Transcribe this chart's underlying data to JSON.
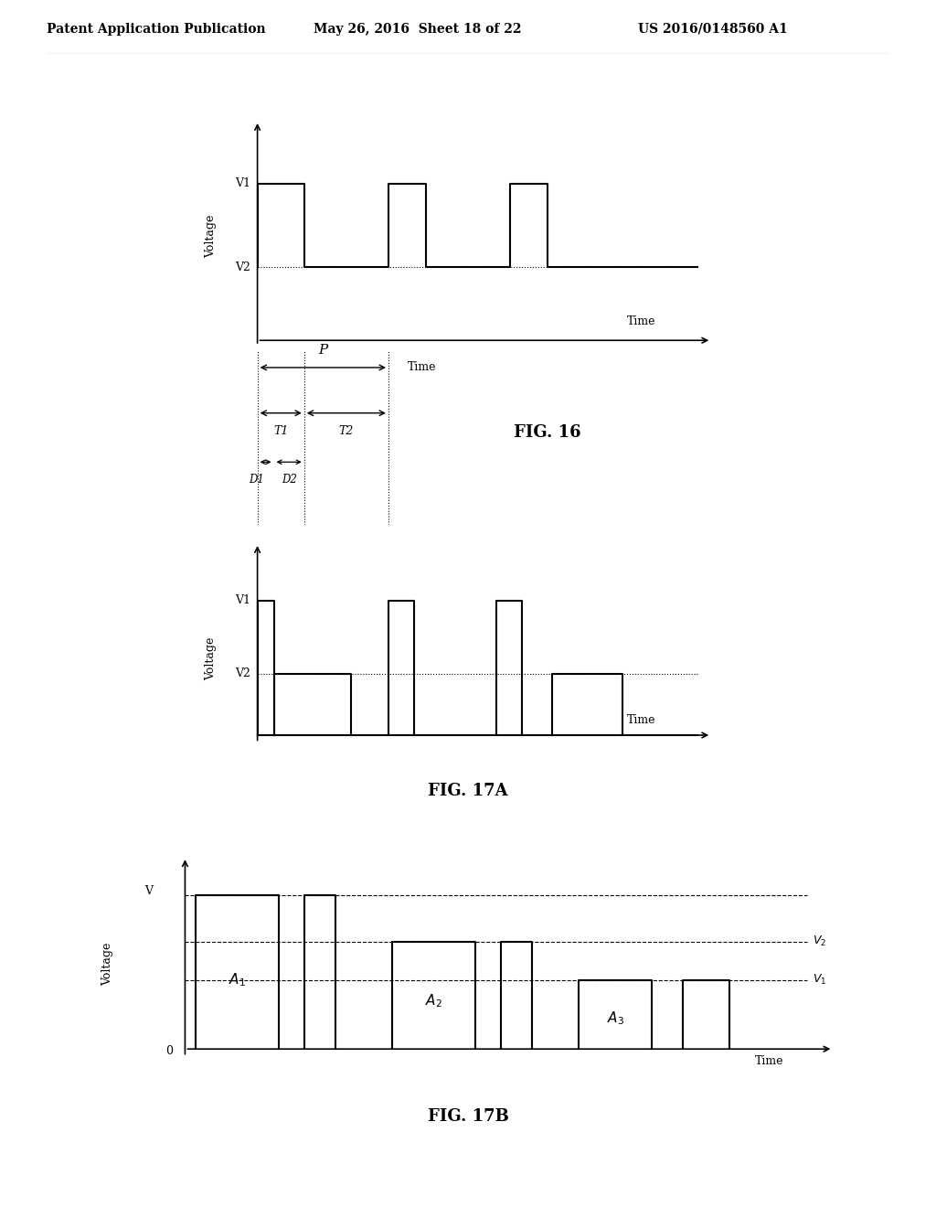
{
  "header_left": "Patent Application Publication",
  "header_mid": "May 26, 2016  Sheet 18 of 22",
  "header_right": "US 2016/0148560 A1",
  "fig16_label": "FIG. 16",
  "fig17a_label": "FIG. 17A",
  "fig17b_label": "FIG. 17B",
  "bg_color": "#ffffff",
  "line_color": "#000000"
}
